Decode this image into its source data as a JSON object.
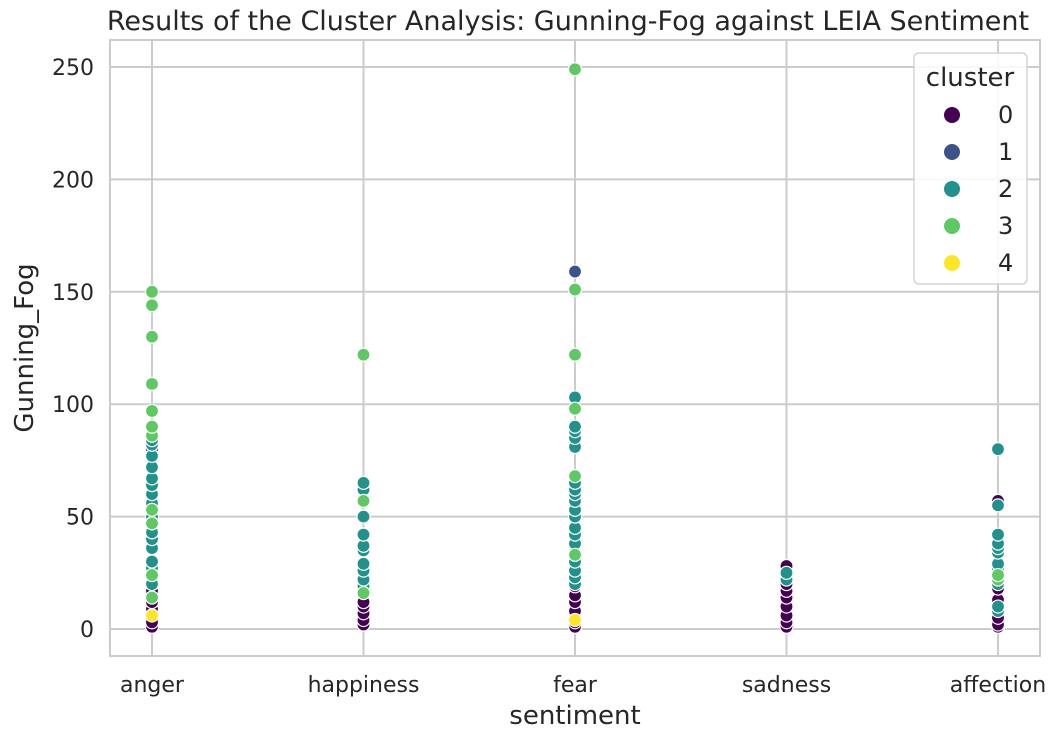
{
  "chart_data": {
    "type": "scatter",
    "title": "Results of the Cluster Analysis: Gunning-Fog against LEIA Sentiment",
    "xlabel": "sentiment",
    "ylabel": "Gunning_Fog",
    "categories": [
      "anger",
      "happiness",
      "fear",
      "sadness",
      "affection"
    ],
    "yticks": [
      0,
      50,
      100,
      150,
      200,
      250
    ],
    "ylim": [
      -12,
      262
    ],
    "grid": true,
    "legend": {
      "title": "cluster",
      "placement": "top-right",
      "entries": [
        {
          "label": "0",
          "color": "#440154"
        },
        {
          "label": "1",
          "color": "#3b528b"
        },
        {
          "label": "2",
          "color": "#21918c"
        },
        {
          "label": "3",
          "color": "#5ec962"
        },
        {
          "label": "4",
          "color": "#fde725"
        }
      ]
    },
    "series": [
      {
        "name": "0",
        "color": "#440154",
        "points": [
          {
            "x": "anger",
            "y": 1
          },
          {
            "x": "anger",
            "y": 3
          },
          {
            "x": "anger",
            "y": 9
          },
          {
            "x": "anger",
            "y": 12
          },
          {
            "x": "anger",
            "y": 15
          },
          {
            "x": "anger",
            "y": 17
          },
          {
            "x": "anger",
            "y": 80
          },
          {
            "x": "happiness",
            "y": 2
          },
          {
            "x": "happiness",
            "y": 4
          },
          {
            "x": "happiness",
            "y": 7
          },
          {
            "x": "happiness",
            "y": 10
          },
          {
            "x": "happiness",
            "y": 12
          },
          {
            "x": "fear",
            "y": 1
          },
          {
            "x": "fear",
            "y": 3
          },
          {
            "x": "fear",
            "y": 5
          },
          {
            "x": "fear",
            "y": 8
          },
          {
            "x": "fear",
            "y": 12
          },
          {
            "x": "fear",
            "y": 15
          },
          {
            "x": "fear",
            "y": 19
          },
          {
            "x": "sadness",
            "y": 1
          },
          {
            "x": "sadness",
            "y": 3
          },
          {
            "x": "sadness",
            "y": 6
          },
          {
            "x": "sadness",
            "y": 10
          },
          {
            "x": "sadness",
            "y": 14
          },
          {
            "x": "sadness",
            "y": 17
          },
          {
            "x": "sadness",
            "y": 20
          },
          {
            "x": "sadness",
            "y": 28
          },
          {
            "x": "affection",
            "y": 1
          },
          {
            "x": "affection",
            "y": 2
          },
          {
            "x": "affection",
            "y": 5
          },
          {
            "x": "affection",
            "y": 9
          },
          {
            "x": "affection",
            "y": 13
          },
          {
            "x": "affection",
            "y": 18
          },
          {
            "x": "affection",
            "y": 57
          }
        ]
      },
      {
        "name": "1",
        "color": "#3b528b",
        "points": [
          {
            "x": "fear",
            "y": 159
          }
        ]
      },
      {
        "name": "2",
        "color": "#21918c",
        "points": [
          {
            "x": "anger",
            "y": 20
          },
          {
            "x": "anger",
            "y": 27
          },
          {
            "x": "anger",
            "y": 30
          },
          {
            "x": "anger",
            "y": 36
          },
          {
            "x": "anger",
            "y": 40
          },
          {
            "x": "anger",
            "y": 43
          },
          {
            "x": "anger",
            "y": 50
          },
          {
            "x": "anger",
            "y": 56
          },
          {
            "x": "anger",
            "y": 60
          },
          {
            "x": "anger",
            "y": 64
          },
          {
            "x": "anger",
            "y": 67
          },
          {
            "x": "anger",
            "y": 72
          },
          {
            "x": "anger",
            "y": 77
          },
          {
            "x": "anger",
            "y": 82
          },
          {
            "x": "anger",
            "y": 84
          },
          {
            "x": "happiness",
            "y": 19
          },
          {
            "x": "happiness",
            "y": 22
          },
          {
            "x": "happiness",
            "y": 26
          },
          {
            "x": "happiness",
            "y": 29
          },
          {
            "x": "happiness",
            "y": 35
          },
          {
            "x": "happiness",
            "y": 37
          },
          {
            "x": "happiness",
            "y": 42
          },
          {
            "x": "happiness",
            "y": 50
          },
          {
            "x": "happiness",
            "y": 62
          },
          {
            "x": "happiness",
            "y": 65
          },
          {
            "x": "fear",
            "y": 20
          },
          {
            "x": "fear",
            "y": 23
          },
          {
            "x": "fear",
            "y": 26
          },
          {
            "x": "fear",
            "y": 30
          },
          {
            "x": "fear",
            "y": 34
          },
          {
            "x": "fear",
            "y": 38
          },
          {
            "x": "fear",
            "y": 42
          },
          {
            "x": "fear",
            "y": 45
          },
          {
            "x": "fear",
            "y": 50
          },
          {
            "x": "fear",
            "y": 53
          },
          {
            "x": "fear",
            "y": 57
          },
          {
            "x": "fear",
            "y": 60
          },
          {
            "x": "fear",
            "y": 62
          },
          {
            "x": "fear",
            "y": 65
          },
          {
            "x": "fear",
            "y": 81
          },
          {
            "x": "fear",
            "y": 85
          },
          {
            "x": "fear",
            "y": 88
          },
          {
            "x": "fear",
            "y": 90
          },
          {
            "x": "fear",
            "y": 103
          },
          {
            "x": "sadness",
            "y": 22
          },
          {
            "x": "sadness",
            "y": 25
          },
          {
            "x": "affection",
            "y": 8
          },
          {
            "x": "affection",
            "y": 10
          },
          {
            "x": "affection",
            "y": 20
          },
          {
            "x": "affection",
            "y": 27
          },
          {
            "x": "affection",
            "y": 29
          },
          {
            "x": "affection",
            "y": 34
          },
          {
            "x": "affection",
            "y": 36
          },
          {
            "x": "affection",
            "y": 38
          },
          {
            "x": "affection",
            "y": 42
          },
          {
            "x": "affection",
            "y": 55
          },
          {
            "x": "affection",
            "y": 80
          }
        ]
      },
      {
        "name": "3",
        "color": "#5ec962",
        "points": [
          {
            "x": "anger",
            "y": 14
          },
          {
            "x": "anger",
            "y": 24
          },
          {
            "x": "anger",
            "y": 47
          },
          {
            "x": "anger",
            "y": 53
          },
          {
            "x": "anger",
            "y": 86
          },
          {
            "x": "anger",
            "y": 90
          },
          {
            "x": "anger",
            "y": 97
          },
          {
            "x": "anger",
            "y": 109
          },
          {
            "x": "anger",
            "y": 130
          },
          {
            "x": "anger",
            "y": 144
          },
          {
            "x": "anger",
            "y": 150
          },
          {
            "x": "happiness",
            "y": 16
          },
          {
            "x": "happiness",
            "y": 57
          },
          {
            "x": "happiness",
            "y": 122
          },
          {
            "x": "fear",
            "y": 33
          },
          {
            "x": "fear",
            "y": 68
          },
          {
            "x": "fear",
            "y": 98
          },
          {
            "x": "fear",
            "y": 122
          },
          {
            "x": "fear",
            "y": 151
          },
          {
            "x": "fear",
            "y": 249
          },
          {
            "x": "affection",
            "y": 22
          },
          {
            "x": "affection",
            "y": 24
          }
        ]
      },
      {
        "name": "4",
        "color": "#fde725",
        "points": [
          {
            "x": "anger",
            "y": 6
          },
          {
            "x": "fear",
            "y": 4
          }
        ]
      }
    ]
  }
}
